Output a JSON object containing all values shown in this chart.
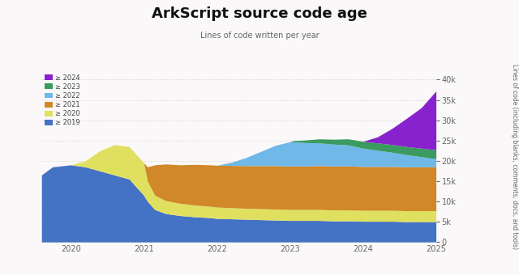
{
  "title": "ArkScript source code age",
  "subtitle": "Lines of code written per year",
  "ylabel": "Lines of code (including blanks, comments, docs, and tools)",
  "colors": {
    "2019": "#4472c4",
    "2020": "#e0e060",
    "2021": "#d08828",
    "2022": "#70b8e8",
    "2023": "#3a9a60",
    "2024": "#8822cc"
  },
  "background_color": "#faf8f8",
  "time_points": [
    2019.6,
    2019.75,
    2020.0,
    2020.2,
    2020.4,
    2020.6,
    2020.8,
    2021.0,
    2021.05,
    2021.15,
    2021.3,
    2021.5,
    2021.7,
    2021.9,
    2022.0,
    2022.2,
    2022.4,
    2022.6,
    2022.8,
    2023.0,
    2023.05,
    2023.2,
    2023.4,
    2023.6,
    2023.8,
    2024.0,
    2024.2,
    2024.4,
    2024.6,
    2024.8,
    2025.0
  ],
  "y2019": [
    16500,
    18500,
    19000,
    18500,
    17500,
    16500,
    15500,
    11500,
    10000,
    8000,
    7000,
    6500,
    6200,
    6000,
    5800,
    5700,
    5600,
    5500,
    5400,
    5300,
    5300,
    5300,
    5300,
    5200,
    5200,
    5100,
    5100,
    5100,
    5000,
    5000,
    5000
  ],
  "y2020": [
    0,
    0,
    0,
    1500,
    5000,
    7500,
    8000,
    8000,
    5000,
    3500,
    3200,
    3000,
    2900,
    2800,
    2800,
    2750,
    2700,
    2700,
    2700,
    2700,
    2700,
    2700,
    2700,
    2700,
    2700,
    2700,
    2700,
    2700,
    2700,
    2700,
    2700
  ],
  "y2021": [
    0,
    0,
    0,
    0,
    0,
    0,
    0,
    0,
    3500,
    7500,
    9000,
    9500,
    10000,
    10200,
    10300,
    10400,
    10500,
    10600,
    10700,
    10700,
    10700,
    10700,
    10800,
    10800,
    10800,
    10800,
    10800,
    10800,
    10800,
    10800,
    10800
  ],
  "y2022": [
    0,
    0,
    0,
    0,
    0,
    0,
    0,
    0,
    0,
    0,
    0,
    0,
    0,
    0,
    0,
    800,
    2000,
    3500,
    5000,
    6000,
    6000,
    5800,
    5600,
    5400,
    5200,
    4500,
    4000,
    3500,
    3000,
    2500,
    2000
  ],
  "y2023": [
    0,
    0,
    0,
    0,
    0,
    0,
    0,
    0,
    0,
    0,
    0,
    0,
    0,
    0,
    0,
    0,
    0,
    0,
    0,
    0,
    300,
    600,
    1000,
    1200,
    1500,
    1700,
    1800,
    1900,
    2000,
    2100,
    2200
  ],
  "y2024": [
    0,
    0,
    0,
    0,
    0,
    0,
    0,
    0,
    0,
    0,
    0,
    0,
    0,
    0,
    0,
    0,
    0,
    0,
    0,
    0,
    0,
    0,
    0,
    0,
    0,
    0,
    1500,
    4000,
    7000,
    10000,
    14500
  ]
}
